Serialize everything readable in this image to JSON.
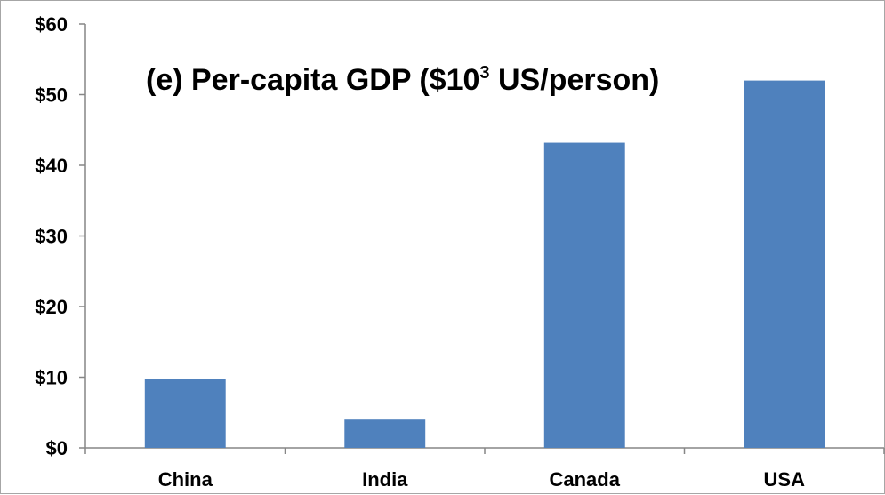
{
  "chart_data": {
    "type": "bar",
    "title": "(e) Per-capita GDP ($10",
    "title_superscript": "3",
    "title_suffix": " US/person)",
    "categories": [
      "China",
      "India",
      "Canada",
      "USA"
    ],
    "values": [
      9.8,
      4.0,
      43.2,
      52.0
    ],
    "ylim": [
      0,
      60
    ],
    "yticks": [
      0,
      10,
      20,
      30,
      40,
      50,
      60
    ],
    "ytick_labels": [
      "$0",
      "$10",
      "$20",
      "$30",
      "$40",
      "$50",
      "$60"
    ],
    "xlabel": "",
    "ylabel": "",
    "grid": false,
    "legend": "none",
    "bar_color": "#4f81bd"
  }
}
